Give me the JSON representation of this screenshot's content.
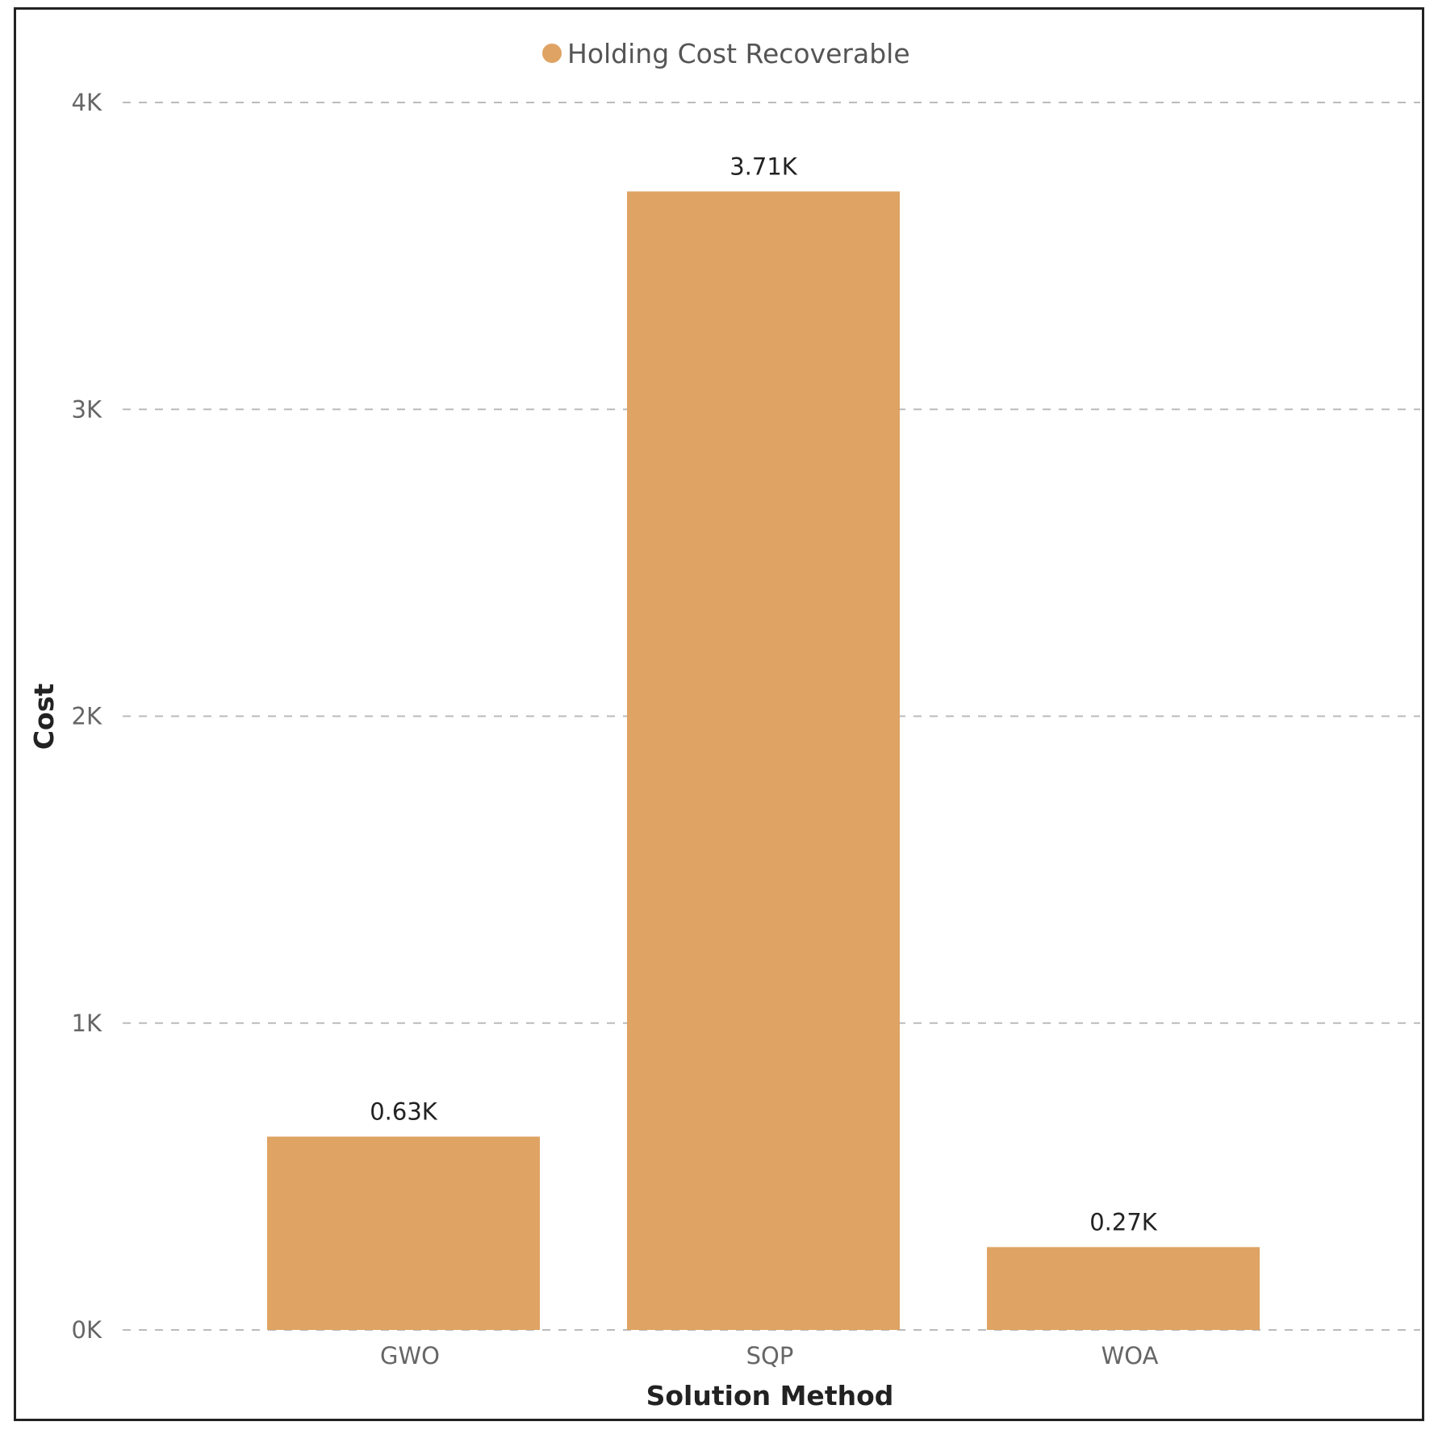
{
  "chart_data": {
    "type": "bar",
    "categories": [
      "GWO",
      "SQP",
      "WOA"
    ],
    "series": [
      {
        "name": "Holding Cost Recoverable",
        "values": [
          630,
          3710,
          270
        ],
        "data_labels": [
          "0.63K",
          "3.71K",
          "0.27K"
        ],
        "color": "#DFA363"
      }
    ],
    "xlabel": "Solution Method",
    "ylabel": "Cost",
    "ylim": [
      0,
      4000
    ],
    "yticks": [
      0,
      1000,
      2000,
      3000,
      4000
    ],
    "ytick_labels": [
      "0K",
      "1K",
      "2K",
      "3K",
      "4K"
    ],
    "grid": true,
    "grid_style": "dashed",
    "legend_position": "top-center"
  },
  "colors": {
    "bar": "#DFA363",
    "grid": "#bbbbbb",
    "frame": "#222222"
  }
}
